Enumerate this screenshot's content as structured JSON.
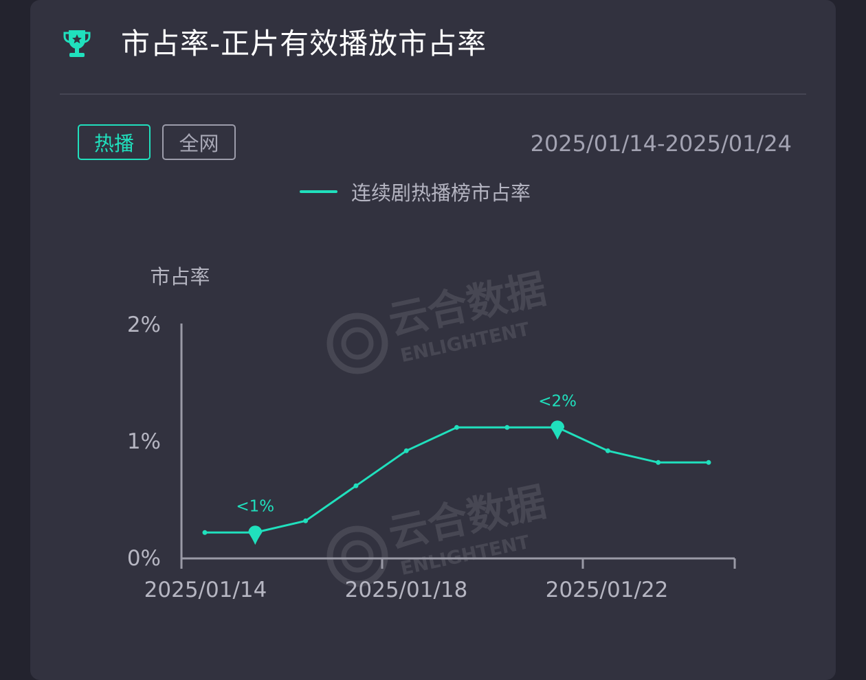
{
  "header": {
    "title": "市占率-正片有效播放市占率",
    "icon": "trophy-icon",
    "accent_color": "#20e0bd"
  },
  "tabs": [
    {
      "label": "热播",
      "active": true
    },
    {
      "label": "全网",
      "active": false
    }
  ],
  "date_range": "2025/01/14-2025/01/24",
  "watermark": "云合数据 ENLIGHTENT",
  "chart_data": {
    "type": "line",
    "ylabel": "市占率",
    "y_ticks": [
      "0%",
      "1%",
      "2%"
    ],
    "ylim": [
      0,
      2
    ],
    "x_tick_labels": [
      "2025/01/14",
      "2025/01/18",
      "2025/01/22"
    ],
    "x": [
      "2025/01/14",
      "2025/01/15",
      "2025/01/16",
      "2025/01/17",
      "2025/01/18",
      "2025/01/19",
      "2025/01/20",
      "2025/01/21",
      "2025/01/22",
      "2025/01/23",
      "2025/01/24"
    ],
    "series": [
      {
        "name": "连续剧热播榜市占率",
        "color": "#20e0bd",
        "values": [
          0.21,
          0.21,
          0.31,
          0.61,
          0.91,
          1.11,
          1.11,
          1.11,
          0.91,
          0.81,
          0.81
        ]
      }
    ],
    "annotations": [
      {
        "index": 1,
        "label": "<1%"
      },
      {
        "index": 7,
        "label": "<2%"
      }
    ],
    "grid": false,
    "legend_position": "top-center"
  }
}
